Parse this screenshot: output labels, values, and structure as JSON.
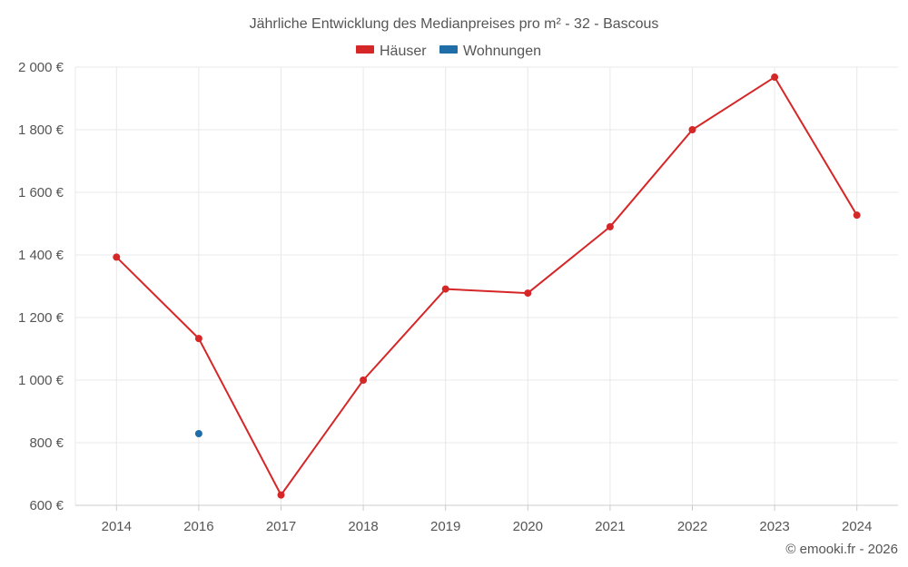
{
  "chart_data": {
    "type": "line",
    "title": "Jährliche Entwicklung des Medianpreises pro m² - 32 - Bascous",
    "categories": [
      "2014",
      "2016",
      "2017",
      "2018",
      "2019",
      "2020",
      "2021",
      "2022",
      "2023",
      "2024"
    ],
    "series": [
      {
        "name": "Häuser",
        "color": "#d62728",
        "values": [
          1393,
          1133,
          633,
          1000,
          1291,
          1278,
          1490,
          1800,
          1968,
          1527
        ]
      },
      {
        "name": "Wohnungen",
        "color": "#1f6ea8",
        "values": [
          null,
          829,
          null,
          null,
          null,
          null,
          null,
          null,
          null,
          null
        ]
      }
    ],
    "ylim": [
      600,
      2000
    ],
    "yticks": [
      600,
      800,
      1000,
      1200,
      1400,
      1600,
      1800,
      2000
    ],
    "ytick_labels": [
      "600 €",
      "800 €",
      "1 000 €",
      "1 200 €",
      "1 400 €",
      "1 600 €",
      "1 800 €",
      "2 000 €"
    ],
    "xlabel": "",
    "ylabel": "",
    "grid": true,
    "legend": "top-center"
  },
  "credit": "© emooki.fr - 2026"
}
